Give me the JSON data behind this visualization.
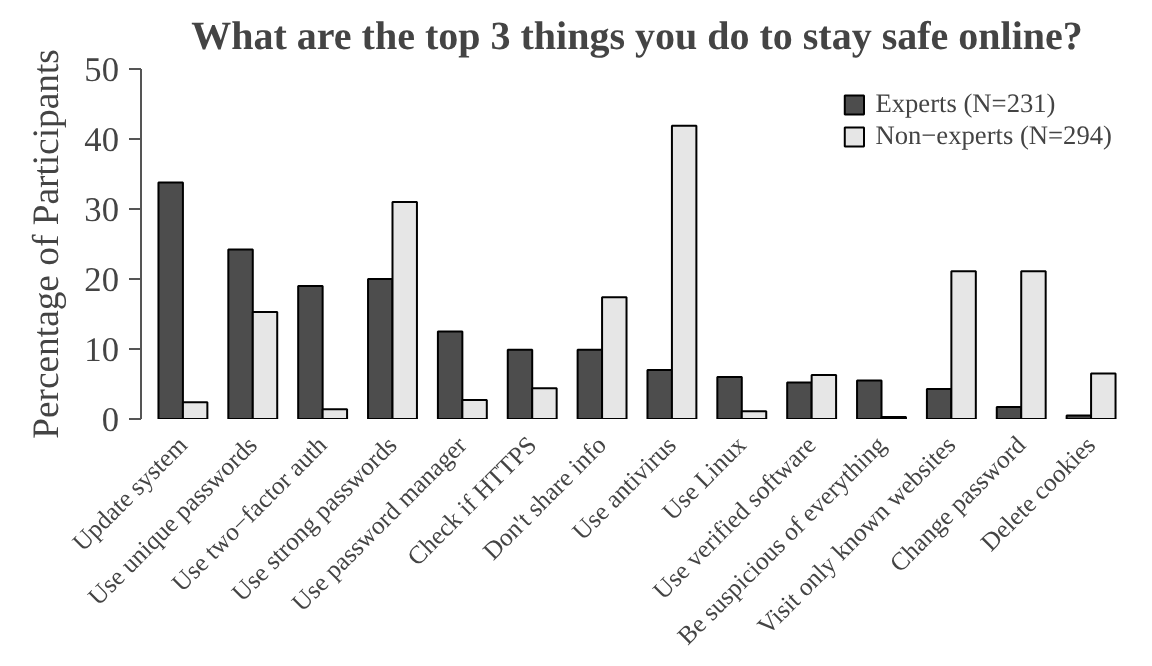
{
  "chart_data": {
    "type": "bar",
    "title": "What are the top 3 things you do to stay safe online?",
    "ylabel": "Percentage of Participants",
    "categories": [
      "Update system",
      "Use unique passwords",
      "Use two−factor auth",
      "Use strong passwords",
      "Use password manager",
      "Check if HTTPS",
      "Don't share info",
      "Use antivirus",
      "Use Linux",
      "Use verified software",
      "Be suspicious of everything",
      "Visit only known websites",
      "Change password",
      "Delete cookies"
    ],
    "series": [
      {
        "name": "Experts (N=231)",
        "color": "#4d4d4d",
        "values": [
          33.8,
          24.2,
          19.0,
          20.0,
          12.5,
          9.9,
          9.9,
          7.0,
          6.0,
          5.2,
          5.5,
          4.3,
          1.7,
          0.5
        ]
      },
      {
        "name": "Non−experts (N=294)",
        "color": "#e6e6e6",
        "values": [
          2.4,
          15.3,
          1.4,
          31.0,
          2.7,
          4.4,
          17.4,
          41.9,
          1.1,
          6.3,
          0.3,
          21.1,
          21.1,
          6.5
        ]
      }
    ],
    "ylim": [
      0,
      50
    ],
    "yticks": [
      0,
      10,
      20,
      30,
      40,
      50
    ],
    "grid": false,
    "legend": "top right"
  }
}
